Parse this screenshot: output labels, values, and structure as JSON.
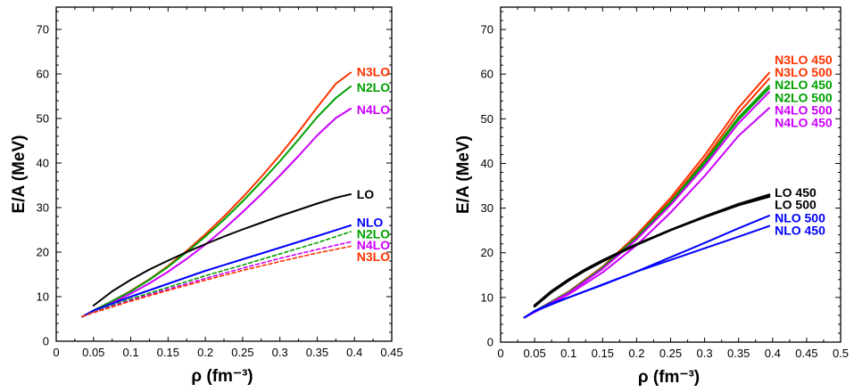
{
  "chart_data": [
    {
      "type": "line",
      "panel": "left",
      "xlabel": "ρ (fm⁻³)",
      "ylabel": "E/A (MeV)",
      "xlim": [
        0,
        0.45
      ],
      "ylim": [
        0,
        75
      ],
      "xticks": [
        0,
        0.05,
        0.1,
        0.15,
        0.2,
        0.25,
        0.3,
        0.35,
        0.4,
        0.45
      ],
      "xtick_labels": [
        "0",
        "0.05",
        "0.1",
        "0.15",
        "0.2",
        "0.25",
        "0.3",
        "0.35",
        "0.4",
        "0.45"
      ],
      "yticks": [
        0,
        10,
        20,
        30,
        40,
        50,
        60,
        70
      ],
      "ytick_labels": [
        "0",
        "10",
        "20",
        "30",
        "40",
        "50",
        "60",
        "70"
      ],
      "grid": false,
      "series": [
        {
          "name": "N3LO",
          "color": "#ff3300",
          "style": "solid",
          "x": [
            0.035,
            0.05,
            0.075,
            0.1,
            0.125,
            0.15,
            0.175,
            0.2,
            0.225,
            0.25,
            0.275,
            0.3,
            0.325,
            0.35,
            0.375,
            0.395
          ],
          "y": [
            5.5,
            6.9,
            9.0,
            11.3,
            13.9,
            16.9,
            20.3,
            24.0,
            28.0,
            32.3,
            36.9,
            41.8,
            47.0,
            52.5,
            57.8,
            60.3
          ]
        },
        {
          "name": "N2LO",
          "color": "#00a000",
          "style": "solid",
          "x": [
            0.035,
            0.05,
            0.075,
            0.1,
            0.125,
            0.15,
            0.175,
            0.2,
            0.225,
            0.25,
            0.275,
            0.3,
            0.325,
            0.35,
            0.375,
            0.395
          ],
          "y": [
            5.5,
            6.9,
            9.0,
            11.2,
            13.8,
            16.7,
            20.0,
            23.5,
            27.3,
            31.4,
            35.8,
            40.4,
            45.3,
            50.3,
            54.6,
            57.2
          ]
        },
        {
          "name": "N4LO",
          "color": "#cc00ff",
          "style": "solid",
          "x": [
            0.035,
            0.05,
            0.075,
            0.1,
            0.125,
            0.15,
            0.175,
            0.2,
            0.225,
            0.25,
            0.275,
            0.3,
            0.325,
            0.35,
            0.375,
            0.395
          ],
          "y": [
            5.5,
            6.7,
            8.6,
            10.7,
            13.0,
            15.6,
            18.5,
            21.7,
            25.2,
            29.0,
            33.0,
            37.2,
            41.6,
            46.2,
            50.1,
            52.2
          ]
        },
        {
          "name": "LO",
          "color": "#000000",
          "style": "solid",
          "x": [
            0.05,
            0.075,
            0.1,
            0.125,
            0.15,
            0.175,
            0.2,
            0.225,
            0.25,
            0.275,
            0.3,
            0.325,
            0.35,
            0.375,
            0.395
          ],
          "y": [
            8.0,
            11.2,
            13.8,
            16.1,
            18.1,
            20.0,
            21.8,
            23.5,
            25.1,
            26.6,
            28.1,
            29.5,
            30.9,
            32.2,
            33.0
          ]
        },
        {
          "name": "NLO",
          "color": "#0000ff",
          "style": "solid",
          "x": [
            0.035,
            0.05,
            0.1,
            0.15,
            0.2,
            0.25,
            0.3,
            0.35,
            0.395
          ],
          "y": [
            5.5,
            6.9,
            10.0,
            12.9,
            15.8,
            18.4,
            21.0,
            23.6,
            26.0
          ]
        },
        {
          "name": "N2LO",
          "color": "#00a000",
          "style": "dashed",
          "x": [
            0.035,
            0.05,
            0.1,
            0.15,
            0.2,
            0.25,
            0.3,
            0.35,
            0.395
          ],
          "y": [
            5.5,
            6.6,
            9.5,
            12.1,
            14.7,
            17.1,
            19.6,
            22.1,
            24.6
          ]
        },
        {
          "name": "N4LO",
          "color": "#cc00ff",
          "style": "dashed",
          "x": [
            0.035,
            0.05,
            0.1,
            0.15,
            0.2,
            0.25,
            0.3,
            0.35,
            0.395
          ],
          "y": [
            5.5,
            6.5,
            9.2,
            11.7,
            14.1,
            16.4,
            18.6,
            20.6,
            22.3
          ]
        },
        {
          "name": "N3LO",
          "color": "#ff3300",
          "style": "dashed",
          "x": [
            0.035,
            0.05,
            0.1,
            0.15,
            0.2,
            0.25,
            0.3,
            0.35,
            0.395
          ],
          "y": [
            5.5,
            6.4,
            9.0,
            11.4,
            13.7,
            15.9,
            17.9,
            19.8,
            21.3
          ]
        }
      ],
      "labels": [
        {
          "text": "N3LO",
          "color": "#ff3300",
          "x": 0.403,
          "y": 60.5
        },
        {
          "text": "N2LO",
          "color": "#00a000",
          "x": 0.403,
          "y": 57.0
        },
        {
          "text": "N4LO",
          "color": "#cc00ff",
          "x": 0.403,
          "y": 52.0
        },
        {
          "text": "LO",
          "color": "#000000",
          "x": 0.403,
          "y": 33.0
        },
        {
          "text": "NLO",
          "color": "#0000ff",
          "x": 0.403,
          "y": 26.7
        },
        {
          "text": "N2LO",
          "color": "#00a000",
          "x": 0.403,
          "y": 24.1
        },
        {
          "text": "N4LO",
          "color": "#cc00ff",
          "x": 0.403,
          "y": 21.6
        },
        {
          "text": "N3LO",
          "color": "#ff3300",
          "x": 0.403,
          "y": 19.0
        }
      ]
    },
    {
      "type": "line",
      "panel": "right",
      "xlabel": "ρ (fm⁻³)",
      "ylabel": "E/A (MeV)",
      "xlim": [
        0,
        0.5
      ],
      "ylim": [
        0,
        75
      ],
      "xticks": [
        0,
        0.05,
        0.1,
        0.15,
        0.2,
        0.25,
        0.3,
        0.35,
        0.4,
        0.45,
        0.5
      ],
      "xtick_labels": [
        "0",
        "0.05",
        "0.1",
        "0.15",
        "0.2",
        "0.25",
        "0.3",
        "0.35",
        "0.4",
        "0.45",
        "0.5"
      ],
      "yticks": [
        0,
        10,
        20,
        30,
        40,
        50,
        60,
        70
      ],
      "ytick_labels": [
        "0",
        "10",
        "20",
        "30",
        "40",
        "50",
        "60",
        "70"
      ],
      "grid": false,
      "series": [
        {
          "name": "N3LO 450",
          "color": "#ff3300",
          "style": "solid",
          "x": [
            0.035,
            0.05,
            0.1,
            0.15,
            0.2,
            0.25,
            0.3,
            0.35,
            0.395
          ],
          "y": [
            5.5,
            6.9,
            11.3,
            16.9,
            24.0,
            32.3,
            41.8,
            52.5,
            60.3
          ]
        },
        {
          "name": "N3LO 500",
          "color": "#ff3300",
          "style": "solid",
          "x": [
            0.035,
            0.05,
            0.1,
            0.15,
            0.2,
            0.25,
            0.3,
            0.35,
            0.395
          ],
          "y": [
            5.5,
            6.9,
            11.2,
            16.7,
            23.6,
            31.7,
            40.9,
            51.3,
            59.0
          ]
        },
        {
          "name": "N2LO 450",
          "color": "#00a000",
          "style": "solid",
          "x": [
            0.035,
            0.05,
            0.1,
            0.15,
            0.2,
            0.25,
            0.3,
            0.35,
            0.395
          ],
          "y": [
            5.5,
            6.9,
            11.2,
            16.7,
            23.5,
            31.4,
            40.4,
            50.3,
            57.4
          ]
        },
        {
          "name": "N2LO 500",
          "color": "#00a000",
          "style": "solid",
          "x": [
            0.035,
            0.05,
            0.1,
            0.15,
            0.2,
            0.25,
            0.3,
            0.35,
            0.395
          ],
          "y": [
            5.5,
            6.9,
            11.1,
            16.6,
            23.3,
            31.1,
            40.0,
            49.8,
            56.8
          ]
        },
        {
          "name": "N4LO 500",
          "color": "#cc00ff",
          "style": "solid",
          "x": [
            0.035,
            0.05,
            0.1,
            0.15,
            0.2,
            0.25,
            0.3,
            0.35,
            0.395
          ],
          "y": [
            5.5,
            6.8,
            11.0,
            16.4,
            23.0,
            30.7,
            39.4,
            49.0,
            56.0
          ]
        },
        {
          "name": "N4LO 450",
          "color": "#cc00ff",
          "style": "solid",
          "x": [
            0.035,
            0.05,
            0.1,
            0.15,
            0.2,
            0.25,
            0.3,
            0.35,
            0.395
          ],
          "y": [
            5.5,
            6.7,
            10.7,
            15.6,
            21.7,
            29.0,
            37.2,
            46.2,
            52.4
          ]
        },
        {
          "name": "LO 450",
          "color": "#000000",
          "style": "solid",
          "x": [
            0.05,
            0.075,
            0.1,
            0.125,
            0.15,
            0.175,
            0.2,
            0.25,
            0.3,
            0.35,
            0.395
          ],
          "y": [
            8.0,
            11.2,
            13.8,
            16.1,
            18.1,
            20.0,
            21.8,
            25.1,
            28.1,
            30.9,
            33.0
          ]
        },
        {
          "name": "LO 500",
          "color": "#000000",
          "style": "solid",
          "x": [
            0.05,
            0.075,
            0.1,
            0.125,
            0.15,
            0.175,
            0.2,
            0.25,
            0.3,
            0.35,
            0.395
          ],
          "y": [
            8.2,
            11.4,
            14.0,
            16.3,
            18.3,
            20.1,
            21.9,
            25.1,
            28.0,
            30.7,
            32.6
          ]
        },
        {
          "name": "NLO 500",
          "color": "#0000ff",
          "style": "solid",
          "x": [
            0.035,
            0.05,
            0.075,
            0.1,
            0.15,
            0.2,
            0.25,
            0.3,
            0.35,
            0.395
          ],
          "y": [
            5.5,
            7.0,
            8.7,
            10.0,
            12.8,
            15.8,
            19.0,
            22.2,
            25.5,
            28.3
          ]
        },
        {
          "name": "NLO 450",
          "color": "#0000ff",
          "style": "solid",
          "x": [
            0.035,
            0.05,
            0.1,
            0.15,
            0.2,
            0.25,
            0.3,
            0.35,
            0.395
          ],
          "y": [
            5.5,
            6.9,
            10.0,
            12.9,
            15.8,
            18.4,
            21.0,
            23.6,
            26.0
          ]
        }
      ],
      "labels": [
        {
          "text": "N3LO 450",
          "color": "#ff3300",
          "x": 0.403,
          "y": 63.2
        },
        {
          "text": "N3LO 500",
          "color": "#ff3300",
          "x": 0.403,
          "y": 60.4
        },
        {
          "text": "N2LO 450",
          "color": "#00a000",
          "x": 0.403,
          "y": 57.6
        },
        {
          "text": "N2LO 500",
          "color": "#00a000",
          "x": 0.403,
          "y": 54.8
        },
        {
          "text": "N4LO 500",
          "color": "#cc00ff",
          "x": 0.403,
          "y": 52.0
        },
        {
          "text": "N4LO 450",
          "color": "#cc00ff",
          "x": 0.403,
          "y": 49.2
        },
        {
          "text": "LO 450",
          "color": "#000000",
          "x": 0.403,
          "y": 33.5
        },
        {
          "text": "LO 500",
          "color": "#000000",
          "x": 0.403,
          "y": 30.8
        },
        {
          "text": "NLO 500",
          "color": "#0000ff",
          "x": 0.403,
          "y": 27.8
        },
        {
          "text": "NLO 450",
          "color": "#0000ff",
          "x": 0.403,
          "y": 25.0
        }
      ]
    }
  ]
}
